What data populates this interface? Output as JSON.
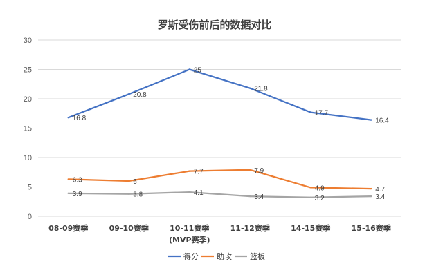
{
  "chart_data": {
    "type": "line",
    "title": "罗斯受伤前后的数据对比",
    "categories": [
      [
        "08-09赛季"
      ],
      [
        "09-10赛季"
      ],
      [
        "10-11赛季",
        "(MVP赛季)"
      ],
      [
        "11-12赛季"
      ],
      [
        "14-15赛季"
      ],
      [
        "15-16赛季"
      ]
    ],
    "series": [
      {
        "name": "得分",
        "color": "#4472c4",
        "values": [
          16.8,
          20.8,
          25,
          21.8,
          17.7,
          16.4
        ]
      },
      {
        "name": "助攻",
        "color": "#ed7d31",
        "values": [
          6.3,
          6,
          7.7,
          7.9,
          4.9,
          4.7
        ]
      },
      {
        "name": "篮板",
        "color": "#a5a5a5",
        "values": [
          3.9,
          3.8,
          4.1,
          3.4,
          3.2,
          3.4
        ]
      }
    ],
    "ylim": [
      0,
      30
    ],
    "yticks": [
      0,
      5,
      10,
      15,
      20,
      25,
      30
    ],
    "grid": true,
    "legend": "bottom"
  }
}
